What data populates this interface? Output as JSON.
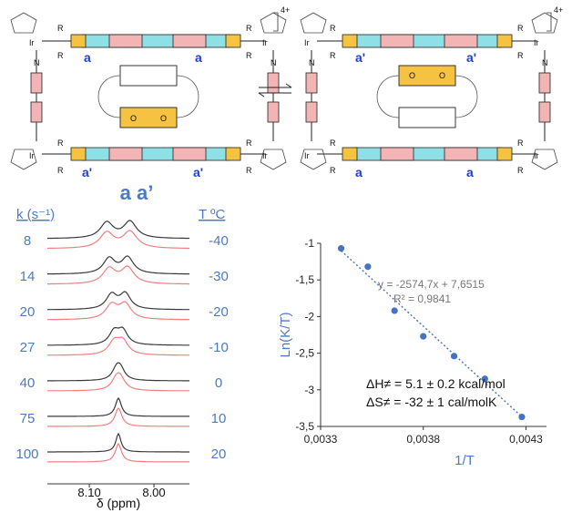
{
  "scheme": {
    "charge_label": "4+",
    "metal_label": "Ir",
    "substituent_label": "R",
    "nitrogen_label": "N",
    "oxygen_label": "O",
    "proton_a": "a",
    "proton_a_prime": "a'"
  },
  "spectra": {
    "peak_header": "a a’",
    "k_header": "k (s⁻¹)",
    "t_header": "T ºC",
    "k_values": [
      "8",
      "14",
      "20",
      "27",
      "40",
      "75",
      "100"
    ],
    "t_values": [
      "-40",
      "-30",
      "-20",
      "-10",
      "0",
      "10",
      "20"
    ],
    "x_ticks": [
      "8.10",
      "8.00"
    ],
    "x_label": "δ (ppm)",
    "exp_color": "#3a3a3a",
    "sim_color": "#f08080"
  },
  "chart_data": {
    "type": "scatter",
    "title": "",
    "xlabel": "1/T",
    "ylabel": "Ln(K/T)",
    "xlim": [
      0.0033,
      0.0044
    ],
    "ylim": [
      -3.5,
      -1.0
    ],
    "x_ticks": [
      0.0033,
      0.0038,
      0.0043
    ],
    "x_tick_labels": [
      "0,0033",
      "0,0038",
      "0,0043"
    ],
    "y_ticks": [
      -1,
      -1.5,
      -2,
      -2.5,
      -3,
      -3.5
    ],
    "y_tick_labels": [
      "-1",
      "-1,5",
      "-2",
      "-2,5",
      "-3",
      "-3,5"
    ],
    "x": [
      0.0034,
      0.00353,
      0.00366,
      0.0038,
      0.00395,
      0.0041,
      0.00428
    ],
    "y": [
      -1.07,
      -1.32,
      -1.92,
      -2.27,
      -2.54,
      -2.85,
      -3.37
    ],
    "point_color": "#4472c4",
    "trendline": {
      "slope": -2574.7,
      "intercept": 7.6515,
      "equation": "y = -2574,7x + 7,6515",
      "r2": "R² = 0,9841",
      "color": "#4472c4"
    },
    "annotations": [
      "ΔH≠ = 5.1 ± 0.2 kcal/mol",
      "ΔS≠ = -32 ± 1 cal/molK"
    ],
    "grid": false,
    "legend": "none"
  }
}
